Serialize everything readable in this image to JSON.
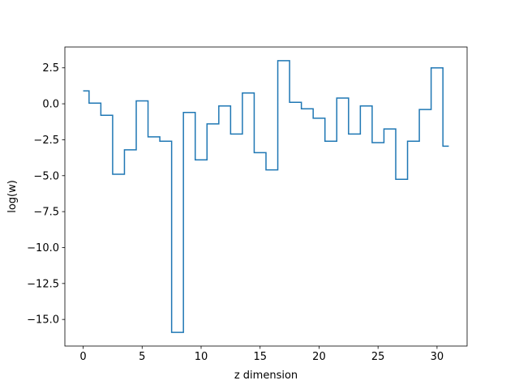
{
  "chart_data": {
    "type": "line",
    "drawstyle": "steps-mid",
    "title": "",
    "xlabel": "z dimension",
    "ylabel": "log(w)",
    "xlim": [
      -1.55,
      32.55
    ],
    "ylim": [
      -16.85,
      3.95
    ],
    "xticks": [
      0,
      5,
      10,
      15,
      20,
      25,
      30
    ],
    "xtick_labels": [
      "0",
      "5",
      "10",
      "15",
      "20",
      "25",
      "30"
    ],
    "yticks": [
      2.5,
      0.0,
      -2.5,
      -5.0,
      -7.5,
      -10.0,
      -12.5,
      -15.0
    ],
    "ytick_labels": [
      "2.5",
      "0.0",
      "−2.5",
      "−5.0",
      "−7.5",
      "−10.0",
      "−12.5",
      "−15.0"
    ],
    "grid": false,
    "series": [
      {
        "color": "#1f77b4",
        "x": [
          0,
          1,
          2,
          3,
          4,
          5,
          6,
          7,
          8,
          9,
          10,
          11,
          12,
          13,
          14,
          15,
          16,
          17,
          18,
          19,
          20,
          21,
          22,
          23,
          24,
          25,
          26,
          27,
          28,
          29,
          30,
          31
        ],
        "values": [
          0.9,
          0.05,
          -0.8,
          -4.9,
          -3.2,
          0.2,
          -2.3,
          -2.6,
          -15.9,
          -0.6,
          -3.9,
          -1.4,
          -0.15,
          -2.1,
          0.75,
          -3.4,
          -4.6,
          3.0,
          0.1,
          -0.35,
          -1.0,
          -2.6,
          0.4,
          -2.1,
          -0.15,
          -2.7,
          -1.75,
          -5.25,
          -2.6,
          -0.4,
          2.5,
          -2.95
        ]
      }
    ]
  }
}
